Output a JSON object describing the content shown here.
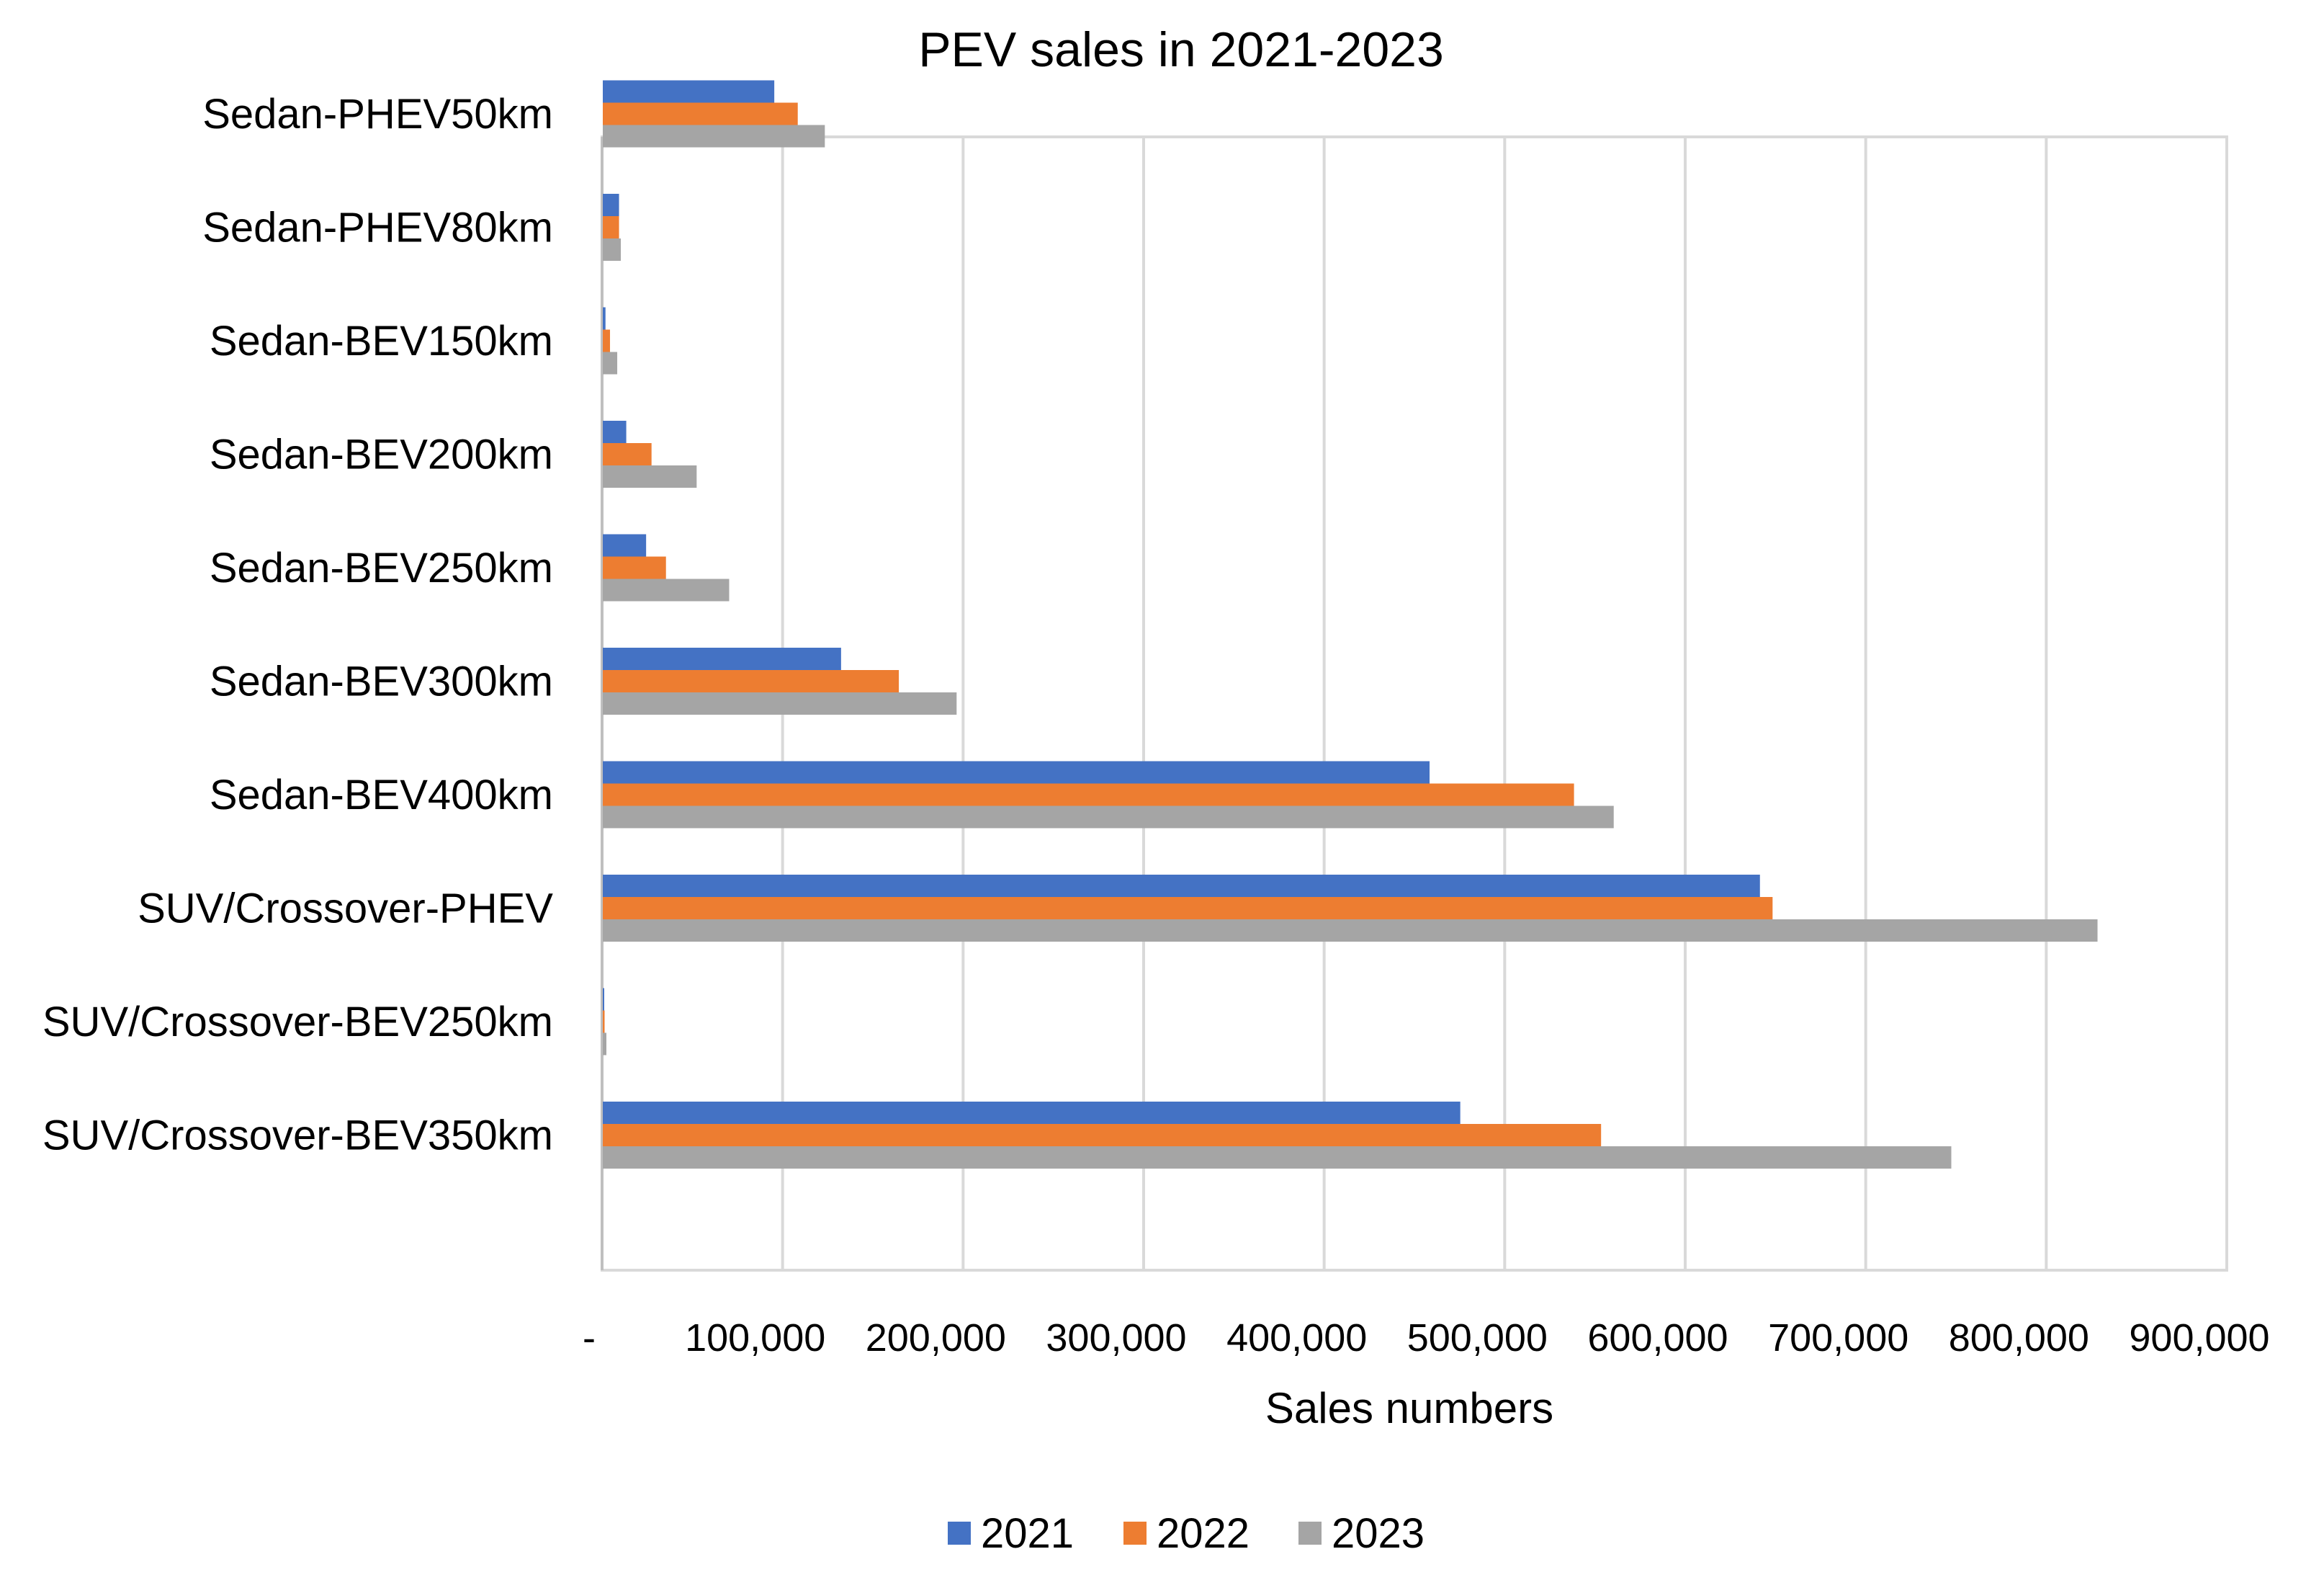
{
  "chart_data": {
    "type": "bar",
    "orientation": "horizontal",
    "title": "PEV sales in 2021-2023",
    "xlabel": "Sales numbers",
    "ylabel": "",
    "xlim": [
      0,
      900000
    ],
    "grid": true,
    "legend_position": "bottom",
    "tick_labels": [
      "-",
      "100,000",
      "200,000",
      "300,000",
      "400,000",
      "500,000",
      "600,000",
      "700,000",
      "800,000",
      "900,000"
    ],
    "categories": [
      "Sedan-PHEV50km",
      "Sedan-PHEV80km",
      "Sedan-BEV150km",
      "Sedan-BEV200km",
      "Sedan-BEV250km",
      "Sedan-BEV300km",
      "Sedan-BEV400km",
      "SUV/Crossover-PHEV",
      "SUV/Crossover-BEV250km",
      "SUV/Crossover-BEV350km"
    ],
    "series": [
      {
        "name": "2021",
        "color": "#4472C4",
        "values": [
          95000,
          9000,
          1500,
          13000,
          24000,
          132000,
          458000,
          641000,
          500,
          475000
        ]
      },
      {
        "name": "2022",
        "color": "#ED7D31",
        "values": [
          108000,
          9000,
          4000,
          27000,
          35000,
          164000,
          538000,
          648000,
          1000,
          553000
        ]
      },
      {
        "name": "2023",
        "color": "#A5A5A5",
        "values": [
          123000,
          10000,
          8000,
          52000,
          70000,
          196000,
          560000,
          828000,
          2000,
          747000
        ]
      }
    ]
  }
}
